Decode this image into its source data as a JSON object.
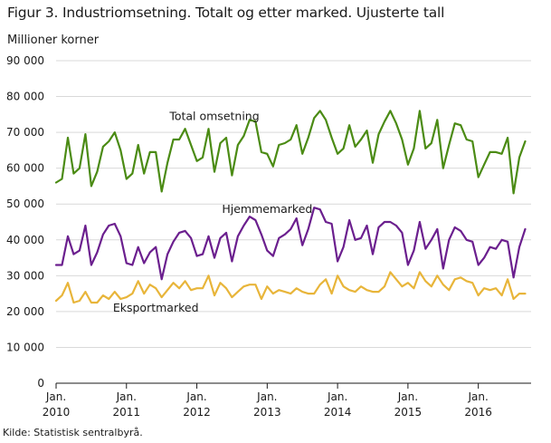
{
  "title": "Figur 3. Industriomsetning. Totalt og etter marked. Ujusterte tall",
  "y_unit": "Millioner  korner",
  "source": "Kilde: Statistisk sentralbyrå.",
  "colors": {
    "total": "#4b8b14",
    "hjemme": "#6b1f8e",
    "eksport": "#e8b53a",
    "grid": "#d9d9d9",
    "axis": "#1a1a1a"
  },
  "chart_data": {
    "type": "line",
    "title": "Figur 3. Industriomsetning. Totalt og etter marked. Ujusterte tall",
    "ylabel": "Millioner  korner",
    "xlabel": "",
    "ylim": [
      0,
      90000
    ],
    "yticks": [
      0,
      10000,
      20000,
      30000,
      40000,
      50000,
      60000,
      70000,
      80000,
      90000
    ],
    "ytick_labels": [
      "0",
      "10 000",
      "20 000",
      "30 000",
      "40 000",
      "50 000",
      "60 000",
      "70 000",
      "80 000",
      "90 000"
    ],
    "xlim": [
      "2010-01",
      "2016-10"
    ],
    "xticks": [
      {
        "period": "2010-01",
        "line1": "Jan.",
        "line2": "2010"
      },
      {
        "period": "2011-01",
        "line1": "Jan.",
        "line2": "2011"
      },
      {
        "period": "2012-01",
        "line1": "Jan.",
        "line2": "2012"
      },
      {
        "period": "2013-01",
        "line1": "Jan.",
        "line2": "2013"
      },
      {
        "period": "2014-01",
        "line1": "Jan.",
        "line2": "2014"
      },
      {
        "period": "2015-01",
        "line1": "Jan.",
        "line2": "2015"
      },
      {
        "period": "2016-01",
        "line1": "Jan.",
        "line2": "2016"
      }
    ],
    "grid": true,
    "x_frequency": "monthly",
    "x_start": "2010-01",
    "series": [
      {
        "name": "Total omsetning",
        "label_period": "2012-04",
        "label_value": 73500,
        "values": [
          56000,
          57000,
          68500,
          58500,
          60000,
          69500,
          55000,
          59000,
          66000,
          67500,
          70000,
          65000,
          57000,
          58500,
          66500,
          58500,
          64500,
          64500,
          53500,
          61500,
          68000,
          68000,
          71000,
          66500,
          62000,
          63000,
          71000,
          59000,
          67000,
          68500,
          58000,
          66500,
          69000,
          73500,
          73000,
          64500,
          64000,
          60500,
          66500,
          67000,
          68000,
          72000,
          64000,
          68500,
          74000,
          76000,
          73500,
          68500,
          64000,
          65500,
          72000,
          66000,
          68000,
          70500,
          61500,
          69500,
          73000,
          76000,
          72500,
          68000,
          61000,
          65500,
          76000,
          65500,
          67000,
          73500,
          60000,
          66500,
          72500,
          72000,
          68000,
          67500,
          57500,
          61000,
          64500,
          64500,
          64000,
          68500,
          53000,
          63000,
          67500
        ]
      },
      {
        "name": "Hjemmemarked",
        "label_period": "2013-01",
        "label_value": 47500,
        "values": [
          33000,
          33000,
          41000,
          36000,
          37000,
          44000,
          33000,
          36500,
          41500,
          44000,
          44500,
          41000,
          33500,
          33000,
          38000,
          33500,
          36500,
          38000,
          29000,
          36000,
          39500,
          42000,
          42500,
          40500,
          35500,
          36000,
          41000,
          35000,
          40500,
          42000,
          34000,
          41000,
          44000,
          46500,
          45500,
          41500,
          37000,
          35500,
          40500,
          41500,
          43000,
          46000,
          38500,
          43000,
          49000,
          48500,
          45000,
          44500,
          34000,
          38000,
          45500,
          40000,
          40500,
          44000,
          36000,
          43500,
          45000,
          45000,
          44000,
          42000,
          33000,
          37000,
          45000,
          37500,
          40000,
          43000,
          32000,
          40000,
          43500,
          42500,
          40000,
          39500,
          33000,
          35000,
          38000,
          37500,
          40000,
          39500,
          29500,
          38000,
          43000
        ]
      },
      {
        "name": "Eksportmarked",
        "label_period": "2011-06",
        "label_value": 20000,
        "values": [
          23000,
          24500,
          28000,
          22500,
          23000,
          25500,
          22500,
          22500,
          24500,
          23500,
          25500,
          23500,
          24000,
          25000,
          28500,
          25000,
          27500,
          26500,
          24000,
          26000,
          28000,
          26500,
          28500,
          26000,
          26500,
          26500,
          30000,
          24500,
          28000,
          26500,
          24000,
          25500,
          27000,
          27500,
          27500,
          23500,
          27000,
          25000,
          26000,
          25500,
          25000,
          26500,
          25500,
          25000,
          25000,
          27500,
          29000,
          25000,
          30000,
          27000,
          26000,
          25500,
          27000,
          26000,
          25500,
          25500,
          27000,
          31000,
          29000,
          27000,
          28000,
          26500,
          31000,
          28500,
          27000,
          30000,
          27500,
          26000,
          29000,
          29500,
          28500,
          28000,
          24500,
          26500,
          26000,
          26500,
          24500,
          29000,
          23500,
          25000,
          25000
        ]
      }
    ]
  }
}
